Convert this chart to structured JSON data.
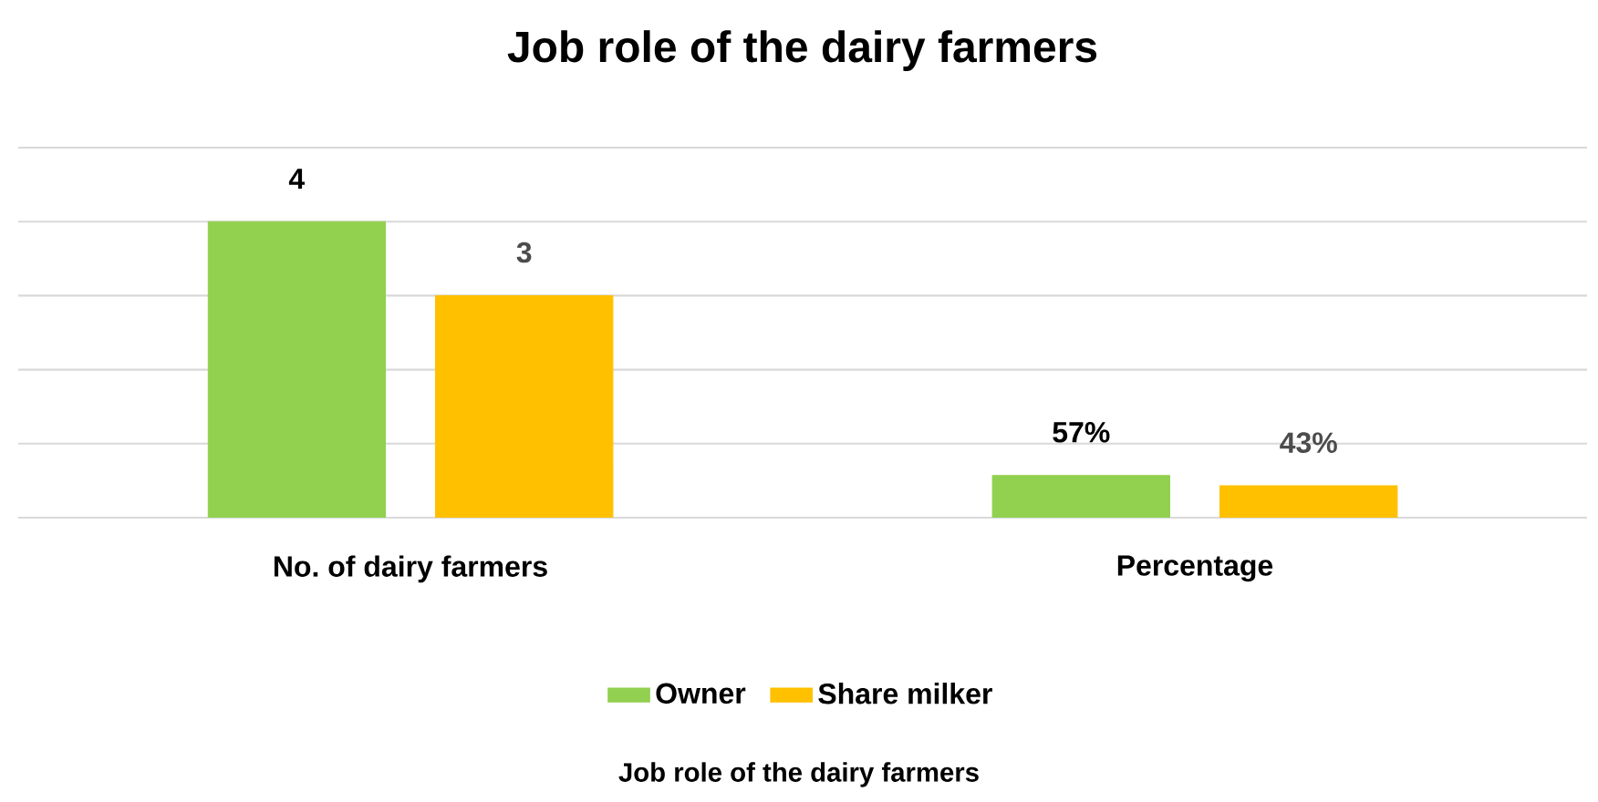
{
  "chart_data": {
    "type": "bar",
    "title": "Job role of the dairy farmers",
    "annotations": [
      "Job role of the dairy farmers"
    ],
    "categories": [
      "No. of dairy farmers",
      "Percentage"
    ],
    "series": [
      {
        "name": "Owner",
        "color": "#92d050",
        "values": [
          4,
          0.57
        ],
        "value_labels": [
          "4",
          "57%"
        ]
      },
      {
        "name": "Share milker",
        "color": "#ffc000",
        "values": [
          3,
          0.43
        ],
        "value_labels": [
          "3",
          "43%"
        ]
      }
    ],
    "ylim": [
      0,
      5
    ],
    "yticks": [
      {
        "value": 0,
        "label": null
      },
      {
        "value": 1,
        "label": null
      },
      {
        "value": 2,
        "label": null
      },
      {
        "value": 3,
        "label": null
      },
      {
        "value": 4,
        "label": null
      },
      {
        "value": 5,
        "label": null
      }
    ],
    "tick_labels": "x",
    "grid": "y",
    "legend": "bottom"
  }
}
